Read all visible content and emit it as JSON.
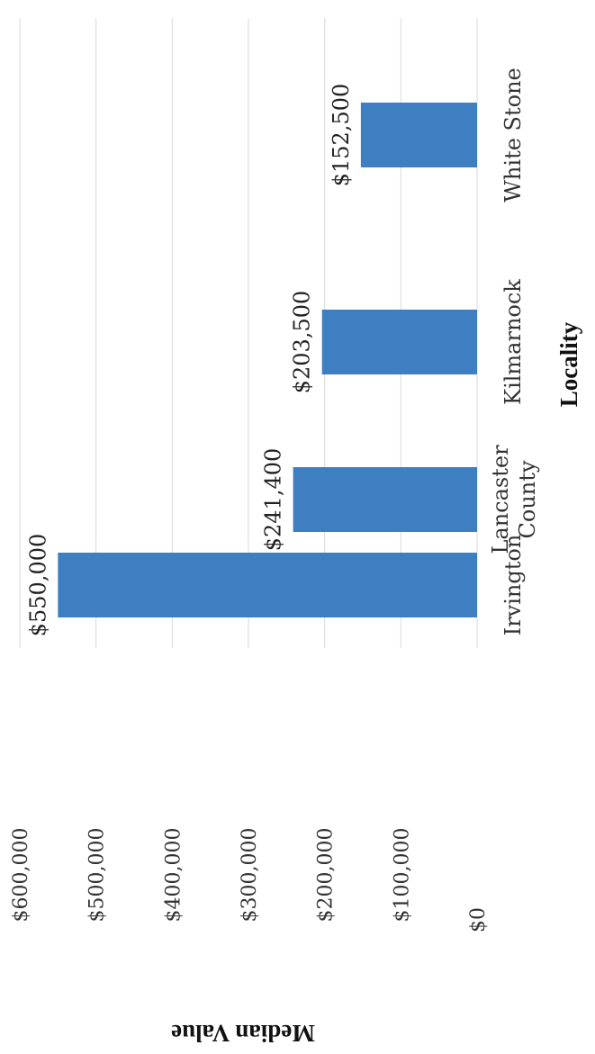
{
  "chart_data": {
    "type": "bar",
    "orientation": "vertical (page rotated 90° counter-clockwise)",
    "categories": [
      "Irvington",
      "Lancaster County",
      "Kilmarnock",
      "White Stone"
    ],
    "category_lines": [
      [
        "Irvington"
      ],
      [
        "Lancaster",
        "County"
      ],
      [
        "Kilmarnock"
      ],
      [
        "White Stone"
      ]
    ],
    "values": [
      550000,
      241400,
      203500,
      152500
    ],
    "data_labels": [
      "$550,000",
      "$241,400",
      "$203,500",
      "$152,500"
    ],
    "ylim": [
      0,
      600000
    ],
    "yticks": [
      0,
      100000,
      200000,
      300000,
      400000,
      500000,
      600000
    ],
    "ytick_labels": [
      "$0",
      "$100,000",
      "$200,000",
      "$300,000",
      "$400,000",
      "$500,000",
      "$600,000"
    ],
    "xlabel": "Locality",
    "ylabel": "Median Value",
    "grid": true,
    "bar_color": "#3d7fc1",
    "legend": "none"
  }
}
